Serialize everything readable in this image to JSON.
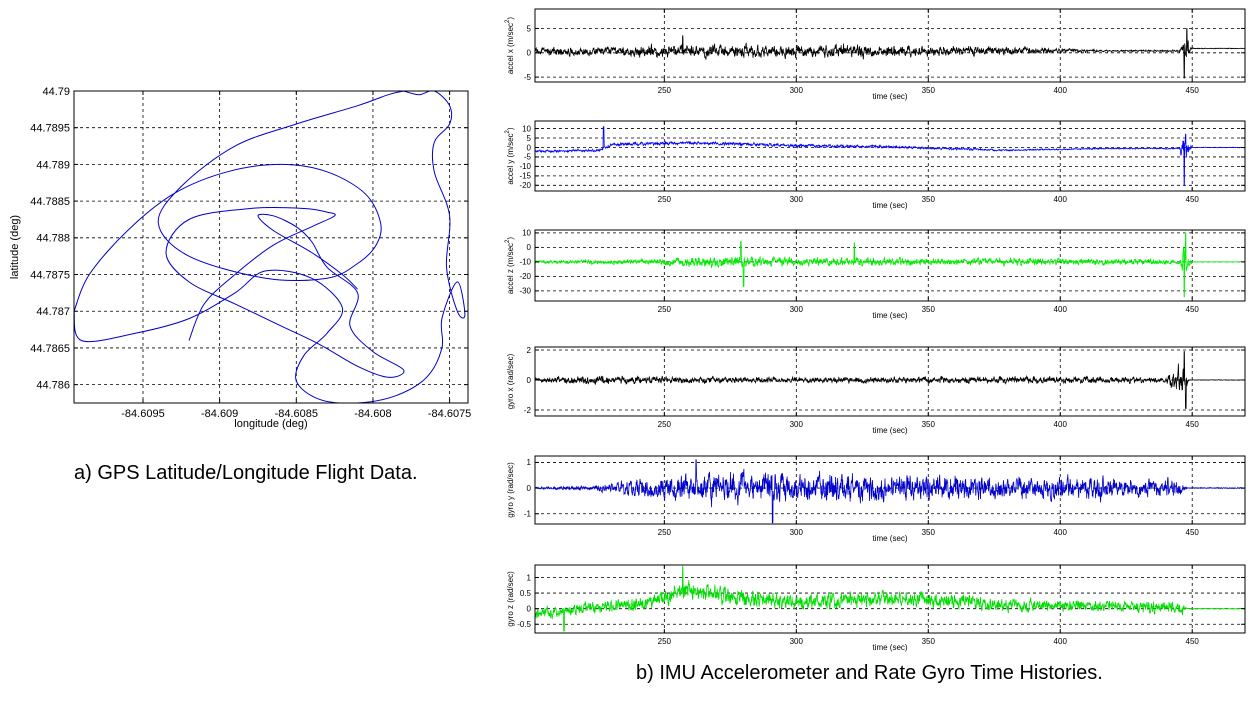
{
  "captions": {
    "a": "a) GPS Latitude/Longitude Flight Data.",
    "b": "b) IMU Accelerometer and Rate Gyro Time Histories."
  },
  "chart_data": [
    {
      "id": "gps",
      "type": "line",
      "xlabel": "longitude (deg)",
      "ylabel": "latitude (deg)",
      "xlim": [
        -84.60995,
        -84.60738
      ],
      "ylim": [
        44.78575,
        44.79
      ],
      "xticks": [
        -84.6095,
        -84.609,
        -84.6085,
        -84.608,
        -84.6075
      ],
      "xtick_labels": [
        "-84.6095",
        "-84.609",
        "-84.6085",
        "-84.608",
        "-84.6075"
      ],
      "yticks": [
        44.786,
        44.7865,
        44.787,
        44.7875,
        44.788,
        44.7885,
        44.789,
        44.7895,
        44.79
      ],
      "ytick_labels": [
        "44.786",
        "44.7865",
        "44.787",
        "44.7875",
        "44.788",
        "44.7885",
        "44.789",
        "44.7895",
        "44.79"
      ],
      "grid": true,
      "color": "#0000cc",
      "series": [
        {
          "x": [
            -84.60995,
            -84.60985,
            -84.6096,
            -84.6093,
            -84.60895,
            -84.6086,
            -84.6083,
            -84.60805,
            -84.60795,
            -84.60798,
            -84.6081,
            -84.6083,
            -84.6087,
            -84.6092,
            -84.6094,
            -84.60925,
            -84.6089,
            -84.6085,
            -84.6081,
            -84.6079,
            -84.6078,
            -84.6078,
            -84.6077,
            -84.6076,
            -84.6075,
            -84.6075,
            -84.6076,
            -84.6076,
            -84.6075,
            -84.60752,
            -84.60745,
            -84.6074,
            -84.60745,
            -84.60755,
            -84.60755,
            -84.60765,
            -84.60785,
            -84.6081,
            -84.60835,
            -84.6085,
            -84.60845,
            -84.6083,
            -84.6082,
            -84.6084,
            -84.6087,
            -84.6089,
            -84.6092,
            -84.60955,
            -84.6099,
            -84.60995
          ],
          "y": [
            44.787,
            44.7875,
            44.7881,
            44.7886,
            44.7889,
            44.789,
            44.7889,
            44.7886,
            44.7882,
            44.7879,
            44.78765,
            44.78745,
            44.78745,
            44.78775,
            44.7882,
            44.7887,
            44.78925,
            44.78955,
            44.7898,
            44.78995,
            44.79,
            44.79,
            44.78995,
            44.79,
            44.7898,
            44.78955,
            44.7893,
            44.7889,
            44.7883,
            44.7876,
            44.787,
            44.78695,
            44.7874,
            44.7869,
            44.7865,
            44.7861,
            44.78585,
            44.78575,
            44.7858,
            44.78605,
            44.7864,
            44.7867,
            44.78705,
            44.78745,
            44.78755,
            44.78725,
            44.7869,
            44.7867,
            44.7866,
            44.787
          ]
        },
        {
          "x": [
            -84.6092,
            -84.6091,
            -84.6089,
            -84.60865,
            -84.6084,
            -84.60825,
            -84.6083,
            -84.60845,
            -84.6088,
            -84.6092,
            -84.60935,
            -84.6092,
            -84.6089,
            -84.6086,
            -84.60835,
            -84.6081,
            -84.6079,
            -84.6078,
            -84.608,
            -84.60815,
            -84.6081,
            -84.6083,
            -84.6084,
            -84.6085,
            -84.60865,
            -84.60875,
            -84.60865,
            -84.6084,
            -84.6082,
            -84.6081
          ],
          "y": [
            44.7866,
            44.7871,
            44.7875,
            44.7879,
            44.78815,
            44.7883,
            44.78835,
            44.7884,
            44.7884,
            44.78825,
            44.7878,
            44.7874,
            44.7871,
            44.7868,
            44.78655,
            44.78625,
            44.7861,
            44.7862,
            44.78645,
            44.7868,
            44.78725,
            44.7876,
            44.78795,
            44.78815,
            44.7883,
            44.7883,
            44.7881,
            44.7878,
            44.7875,
            44.7873
          ]
        }
      ]
    },
    {
      "id": "accel-x",
      "type": "line",
      "color": "#000000",
      "xlabel": "time (sec)",
      "ylabel": "accel x (m/sec",
      "ylabel_sup": "2",
      "ylabel_end": ")",
      "xlim": [
        201,
        470
      ],
      "ylim": [
        -6,
        9
      ],
      "xticks": [
        250,
        300,
        350,
        400,
        450
      ],
      "xtick_labels": [
        "250",
        "300",
        "350",
        "400",
        "450"
      ],
      "yticks": [
        -5,
        0,
        5
      ],
      "ytick_labels": [
        "-5",
        "0",
        "5"
      ],
      "grid": true,
      "profile": [
        [
          201,
          0.3,
          1.0
        ],
        [
          230,
          0.3,
          1.2
        ],
        [
          245,
          0.3,
          1.8
        ],
        [
          258,
          0.3,
          1.6
        ],
        [
          270,
          0.3,
          1.9
        ],
        [
          290,
          0.3,
          1.6
        ],
        [
          320,
          0.4,
          2.0
        ],
        [
          340,
          0.4,
          1.4
        ],
        [
          370,
          0.4,
          1.4
        ],
        [
          395,
          0.5,
          0.8
        ],
        [
          420,
          0.4,
          0.2
        ],
        [
          445,
          0.4,
          0.3
        ],
        [
          448,
          0.4,
          3.5
        ],
        [
          450,
          0.9,
          0.1
        ],
        [
          470,
          0.9,
          0.1
        ]
      ],
      "spikes": [
        [
          257,
          3.5
        ],
        [
          447,
          -5.2
        ],
        [
          448,
          5.0
        ]
      ]
    },
    {
      "id": "accel-y",
      "type": "line",
      "color": "#0000ff",
      "xlabel": "time (sec)",
      "ylabel": "accel y (m/sec",
      "ylabel_sup": "2",
      "ylabel_end": ")",
      "xlim": [
        201,
        470
      ],
      "ylim": [
        -23,
        14
      ],
      "xticks": [
        250,
        300,
        350,
        400,
        450
      ],
      "xtick_labels": [
        "250",
        "300",
        "350",
        "400",
        "450"
      ],
      "yticks": [
        -20,
        -15,
        -10,
        -5,
        0,
        5,
        10
      ],
      "ytick_labels": [
        "-20",
        "-15",
        "-10",
        "-5",
        "0",
        "5",
        "10"
      ],
      "grid": true,
      "profile": [
        [
          201,
          -2.0,
          0.8
        ],
        [
          225,
          -1.5,
          1.0
        ],
        [
          230,
          1.5,
          1.2
        ],
        [
          260,
          2.5,
          1.2
        ],
        [
          300,
          1.0,
          1.2
        ],
        [
          330,
          0.5,
          1.0
        ],
        [
          350,
          -0.3,
          0.8
        ],
        [
          380,
          -1.5,
          0.6
        ],
        [
          420,
          -0.5,
          0.4
        ],
        [
          445,
          -0.5,
          0.5
        ],
        [
          447,
          -2.0,
          11.0
        ],
        [
          450,
          0.0,
          0.2
        ],
        [
          470,
          0.0,
          0.2
        ]
      ],
      "spikes": [
        [
          227,
          11.0
        ],
        [
          447,
          -20.0
        ],
        [
          447.5,
          7.0
        ]
      ]
    },
    {
      "id": "accel-z",
      "type": "line",
      "color": "#00ee00",
      "xlabel": "time (sec)",
      "ylabel": "accel z (m/sec",
      "ylabel_sup": "2",
      "ylabel_end": ")",
      "xlim": [
        201,
        470
      ],
      "ylim": [
        -37,
        12
      ],
      "xticks": [
        250,
        300,
        350,
        400,
        450
      ],
      "xtick_labels": [
        "250",
        "300",
        "350",
        "400",
        "450"
      ],
      "yticks": [
        -30,
        -20,
        -10,
        0,
        10
      ],
      "ytick_labels": [
        "-30",
        "-20",
        "-10",
        "0",
        "10"
      ],
      "grid": true,
      "profile": [
        [
          201,
          -10,
          1.5
        ],
        [
          240,
          -10,
          2.5
        ],
        [
          270,
          -10,
          5.5
        ],
        [
          300,
          -10,
          4.0
        ],
        [
          330,
          -10,
          4.0
        ],
        [
          350,
          -10,
          3.5
        ],
        [
          380,
          -10,
          3.5
        ],
        [
          420,
          -10,
          3.0
        ],
        [
          445,
          -10,
          2.5
        ],
        [
          447,
          -10,
          15.0
        ],
        [
          450,
          -10,
          0.2
        ],
        [
          470,
          -10,
          0.2
        ]
      ],
      "spikes": [
        [
          280,
          -27
        ],
        [
          279,
          4
        ],
        [
          322,
          3
        ],
        [
          447,
          -34
        ],
        [
          447.5,
          10
        ]
      ]
    },
    {
      "id": "gyro-x",
      "type": "line",
      "color": "#000000",
      "xlabel": "time (sec)",
      "ylabel": "gyro x (rad/sec)",
      "xlim": [
        201,
        470
      ],
      "ylim": [
        -2.4,
        2.2
      ],
      "xticks": [
        250,
        300,
        350,
        400,
        450
      ],
      "xtick_labels": [
        "250",
        "300",
        "350",
        "400",
        "450"
      ],
      "yticks": [
        -2,
        0,
        2
      ],
      "ytick_labels": [
        "-2",
        "0",
        "2"
      ],
      "grid": true,
      "profile": [
        [
          201,
          0.0,
          0.15
        ],
        [
          215,
          0.0,
          0.4
        ],
        [
          260,
          0.0,
          0.3
        ],
        [
          300,
          0.0,
          0.25
        ],
        [
          360,
          0.0,
          0.3
        ],
        [
          400,
          0.0,
          0.3
        ],
        [
          440,
          0.0,
          0.25
        ],
        [
          446,
          0.0,
          1.5
        ],
        [
          449,
          0.0,
          0.02
        ],
        [
          470,
          0.0,
          0.02
        ]
      ],
      "spikes": [
        [
          447,
          1.9
        ],
        [
          447.6,
          -1.9
        ]
      ]
    },
    {
      "id": "gyro-y",
      "type": "line",
      "color": "#0000cc",
      "xlabel": "time (sec)",
      "ylabel": "gyro y (rad/sec)",
      "xlim": [
        201,
        470
      ],
      "ylim": [
        -1.4,
        1.25
      ],
      "xticks": [
        250,
        300,
        350,
        400,
        450
      ],
      "xtick_labels": [
        "250",
        "300",
        "350",
        "400",
        "450"
      ],
      "yticks": [
        -1,
        0,
        1
      ],
      "ytick_labels": [
        "-1",
        "0",
        "1"
      ],
      "grid": true,
      "profile": [
        [
          201,
          0.0,
          0.05
        ],
        [
          225,
          0.0,
          0.15
        ],
        [
          240,
          0.0,
          0.5
        ],
        [
          260,
          0.0,
          0.8
        ],
        [
          300,
          0.0,
          0.8
        ],
        [
          340,
          0.0,
          0.7
        ],
        [
          380,
          0.0,
          0.6
        ],
        [
          420,
          0.0,
          0.6
        ],
        [
          445,
          0.0,
          0.4
        ],
        [
          448,
          0.0,
          0.03
        ],
        [
          470,
          0.0,
          0.03
        ]
      ],
      "spikes": [
        [
          291,
          -1.35
        ],
        [
          262,
          1.1
        ]
      ]
    },
    {
      "id": "gyro-z",
      "type": "line",
      "color": "#00dd00",
      "xlabel": "time (sec)",
      "ylabel": "gyro z (rad/sec)",
      "xlim": [
        201,
        470
      ],
      "ylim": [
        -0.78,
        1.4
      ],
      "xticks": [
        250,
        300,
        350,
        400,
        450
      ],
      "xtick_labels": [
        "250",
        "300",
        "350",
        "400",
        "450"
      ],
      "yticks": [
        -0.5,
        0,
        0.5,
        1
      ],
      "ytick_labels": [
        "-0.5",
        "0",
        "0.5",
        "1"
      ],
      "grid": true,
      "profile": [
        [
          201,
          -0.2,
          0.25
        ],
        [
          215,
          0.0,
          0.25
        ],
        [
          240,
          0.1,
          0.3
        ],
        [
          258,
          0.6,
          0.4
        ],
        [
          275,
          0.4,
          0.4
        ],
        [
          300,
          0.2,
          0.35
        ],
        [
          320,
          0.3,
          0.35
        ],
        [
          350,
          0.3,
          0.35
        ],
        [
          380,
          0.1,
          0.3
        ],
        [
          420,
          0.1,
          0.25
        ],
        [
          446,
          0.0,
          0.3
        ],
        [
          448,
          0.0,
          0.02
        ],
        [
          470,
          0.0,
          0.02
        ]
      ],
      "spikes": [
        [
          257,
          1.35
        ],
        [
          212,
          -0.72
        ]
      ]
    }
  ]
}
